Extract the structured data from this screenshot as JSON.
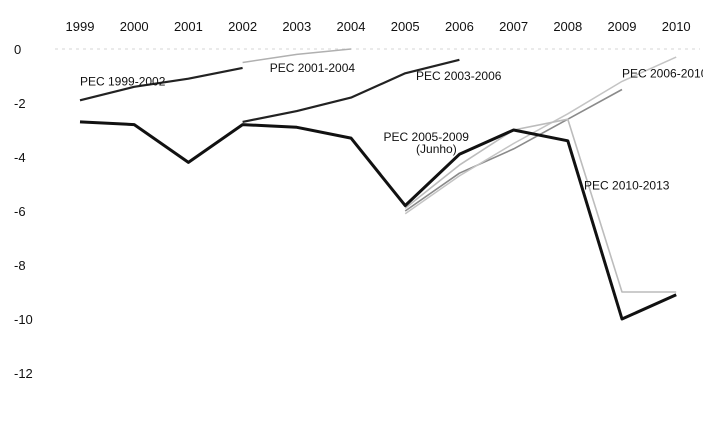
{
  "chart_data": {
    "type": "line",
    "title": "",
    "xlabel": "",
    "ylabel": "",
    "categories": [
      "1999",
      "2000",
      "2001",
      "2002",
      "2003",
      "2004",
      "2005",
      "2006",
      "2007",
      "2008",
      "2009",
      "2010"
    ],
    "ylim": [
      -12,
      0
    ],
    "yticks": [
      0,
      -2,
      -4,
      -6,
      -8,
      -10,
      -12
    ],
    "grid": false,
    "legend": "none",
    "series": [
      {
        "name": "PEC 1999-2002",
        "color": "#222222",
        "width": 2.2,
        "values": [
          -1.9,
          -1.4,
          -1.1,
          -0.7,
          null,
          null,
          null,
          null,
          null,
          null,
          null,
          null
        ]
      },
      {
        "name": "PEC 2001-2004",
        "color": "#b0b0b0",
        "width": 1.5,
        "values": [
          null,
          null,
          null,
          -0.5,
          -0.2,
          0.0,
          null,
          null,
          null,
          null,
          null,
          null
        ]
      },
      {
        "name": "PEC 2003-2006",
        "color": "#222222",
        "width": 2.2,
        "values": [
          null,
          null,
          null,
          -2.7,
          -2.3,
          -1.8,
          -0.9,
          -0.4,
          null,
          null,
          null,
          null
        ]
      },
      {
        "name": "PEC 2005-2009 (Junho)",
        "color": "#8a8a8a",
        "width": 1.6,
        "values": [
          null,
          null,
          null,
          null,
          null,
          null,
          -6.0,
          -4.6,
          -3.7,
          -2.6,
          -1.5,
          null
        ]
      },
      {
        "name": "PEC 2006-2010",
        "color": "#c4c4c4",
        "width": 1.5,
        "values": [
          null,
          null,
          null,
          null,
          null,
          null,
          -6.1,
          -4.7,
          -3.5,
          -2.4,
          -1.2,
          -0.3
        ]
      },
      {
        "name": "PEC 2010-2013",
        "color": "#bcbcbc",
        "width": 1.6,
        "values": [
          null,
          null,
          null,
          null,
          null,
          null,
          -5.9,
          -4.3,
          -3.0,
          -2.6,
          -9.0,
          -9.0
        ]
      },
      {
        "name": "",
        "color": "#111111",
        "width": 3.0,
        "values": [
          -2.7,
          -2.8,
          -4.2,
          -2.8,
          -2.9,
          -3.3,
          -5.8,
          -3.9,
          -3.0,
          -3.4,
          -10.0,
          -9.1
        ]
      }
    ],
    "annotations": [
      {
        "text": "PEC 1999-2002",
        "x": "1999",
        "y": -1.35
      },
      {
        "text": "PEC 2001-2004",
        "x": "2002.5",
        "y": -0.85
      },
      {
        "text": "PEC 2003-2006",
        "x": "2005.2",
        "y": -1.15
      },
      {
        "text": "PEC 2006-2010",
        "x": "2009",
        "y": -1.05
      },
      {
        "text": "PEC 2005-2009",
        "x": "2004.6",
        "y": -3.4
      },
      {
        "text": "(Junho)",
        "x": "2005.2",
        "y": -3.85
      },
      {
        "text": "PEC 2010-2013",
        "x": "2008.3",
        "y": -5.2
      }
    ]
  }
}
